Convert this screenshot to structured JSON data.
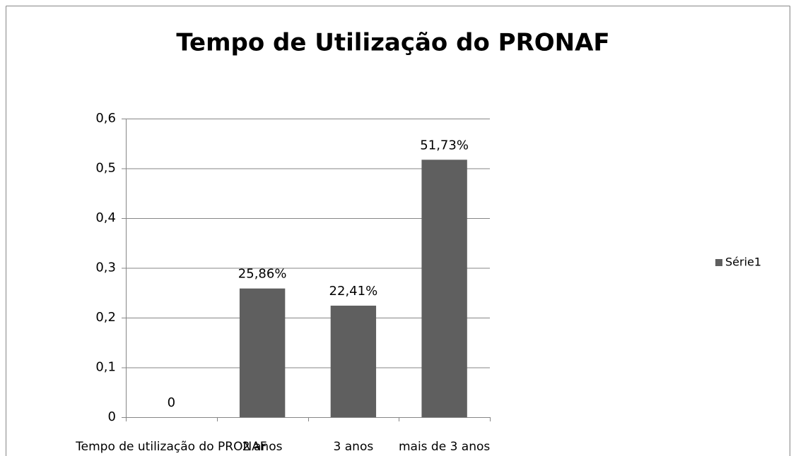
{
  "chart_data": {
    "type": "bar",
    "title": "Tempo de Utilização do PRONAF",
    "categories": [
      "Tempo de utilização do PRONAF",
      "2 anos",
      "3 anos",
      "mais de 3 anos"
    ],
    "series": [
      {
        "name": "Série1",
        "color": "#5f5f5f",
        "values": [
          0,
          0.2586,
          0.2241,
          0.5173
        ],
        "value_labels": [
          "0",
          "25,86%",
          "22,41%",
          "51,73%"
        ]
      }
    ],
    "ylim": [
      0,
      0.6
    ],
    "yticks": [
      0,
      {
        "value": 0.1,
        "label": "0,1"
      },
      {
        "value": 0.2,
        "label": "0,2"
      },
      {
        "value": 0.3,
        "label": "0,3"
      },
      {
        "value": 0.4,
        "label": "0,4"
      },
      {
        "value": 0.5,
        "label": "0,5"
      },
      {
        "value": 0.6,
        "label": "0,6"
      }
    ],
    "grid": true,
    "legend": "right"
  }
}
